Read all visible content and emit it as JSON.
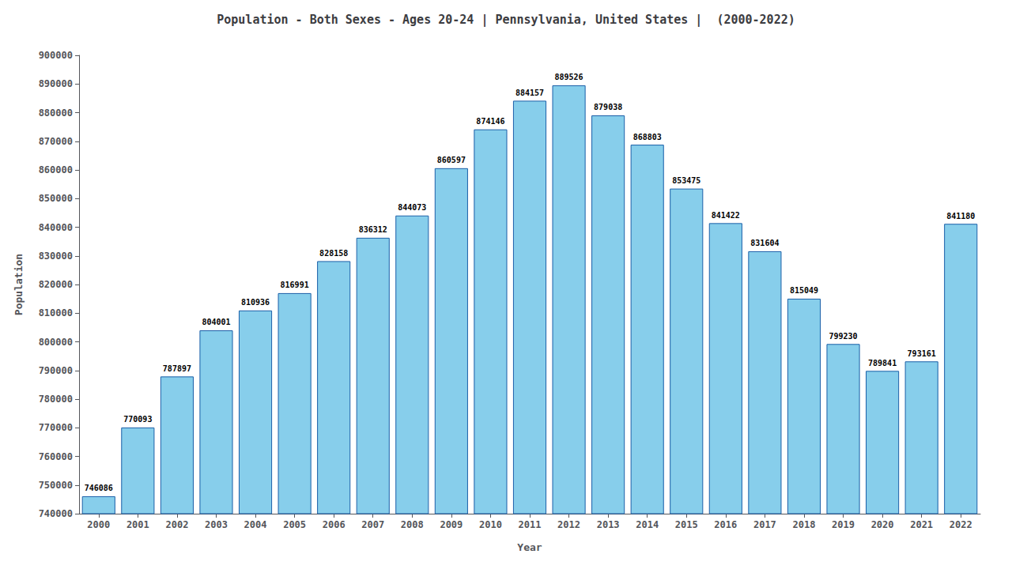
{
  "chart_data": {
    "type": "bar",
    "title": "Population - Both Sexes - Ages 20-24 | Pennsylvania, United States |  (2000-2022)",
    "x_label": "Year",
    "y_label": "Population",
    "categories": [
      "2000",
      "2001",
      "2002",
      "2003",
      "2004",
      "2005",
      "2006",
      "2007",
      "2008",
      "2009",
      "2010",
      "2011",
      "2012",
      "2013",
      "2014",
      "2015",
      "2016",
      "2017",
      "2018",
      "2019",
      "2020",
      "2021",
      "2022"
    ],
    "values": [
      746086,
      770093,
      787897,
      804001,
      810936,
      816991,
      828158,
      836312,
      844073,
      860597,
      874146,
      884157,
      889526,
      879038,
      868803,
      853475,
      841422,
      831604,
      815049,
      799230,
      789841,
      793161,
      841180
    ],
    "color": "#87ceeb",
    "ylim": [
      740000,
      900000
    ],
    "yticks": [
      740000,
      750000,
      760000,
      770000,
      780000,
      790000,
      800000,
      810000,
      820000,
      830000,
      840000,
      850000,
      860000,
      870000,
      880000,
      890000,
      900000
    ],
    "grid": false,
    "data_labels": true
  }
}
